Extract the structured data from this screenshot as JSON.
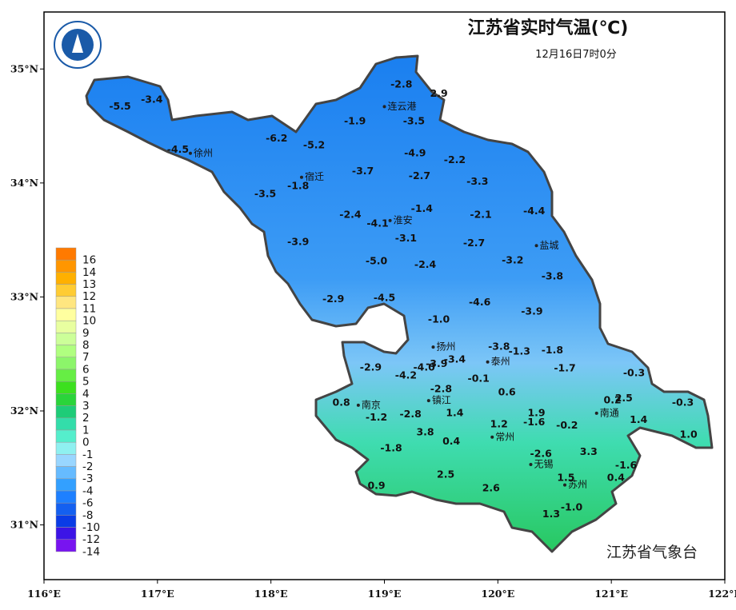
{
  "title": "江苏省实时气温(℃)",
  "subtitle": "12月16日7时0分",
  "agency": "江苏省气象台",
  "lon_range": [
    116,
    122
  ],
  "lat_range": [
    30.52,
    35.5
  ],
  "lon_ticks": [
    {
      "value": 116,
      "label": "116°E"
    },
    {
      "value": 117,
      "label": "117°E"
    },
    {
      "value": 118,
      "label": "118°E"
    },
    {
      "value": 119,
      "label": "119°E"
    },
    {
      "value": 120,
      "label": "120°E"
    },
    {
      "value": 121,
      "label": "121°E"
    },
    {
      "value": 122,
      "label": "122°E"
    }
  ],
  "lat_ticks": [
    {
      "value": 35,
      "label": "35°N"
    },
    {
      "value": 34,
      "label": "34°N"
    },
    {
      "value": 33,
      "label": "33°N"
    },
    {
      "value": 32,
      "label": "32°N"
    },
    {
      "value": 31,
      "label": "31°N"
    }
  ],
  "legend": [
    {
      "value": 16,
      "color": "#ff7a00"
    },
    {
      "value": 14,
      "color": "#ff9600"
    },
    {
      "value": 13,
      "color": "#ffb000"
    },
    {
      "value": 12,
      "color": "#ffcc33"
    },
    {
      "value": 11,
      "color": "#ffe680"
    },
    {
      "value": 10,
      "color": "#ffff9f"
    },
    {
      "value": 9,
      "color": "#e8ffa0"
    },
    {
      "value": 8,
      "color": "#ccff99"
    },
    {
      "value": 7,
      "color": "#b0ff80"
    },
    {
      "value": 6,
      "color": "#8cf56a"
    },
    {
      "value": 5,
      "color": "#66ee44"
    },
    {
      "value": 4,
      "color": "#3ce01e"
    },
    {
      "value": 3,
      "color": "#2ad43a"
    },
    {
      "value": 2,
      "color": "#1ecc78"
    },
    {
      "value": 1,
      "color": "#33ddaa"
    },
    {
      "value": 0,
      "color": "#55eecc"
    },
    {
      "value": -1,
      "color": "#8ff0f0"
    },
    {
      "value": -2,
      "color": "#99d6ff"
    },
    {
      "value": -3,
      "color": "#66bbff"
    },
    {
      "value": -4,
      "color": "#33a0ff"
    },
    {
      "value": -6,
      "color": "#1e80ff"
    },
    {
      "value": -8,
      "color": "#1460f0"
    },
    {
      "value": -10,
      "color": "#0a3ce6"
    },
    {
      "value": -12,
      "color": "#3c14e6"
    },
    {
      "value": -14,
      "color": "#7814f0"
    }
  ],
  "cities": [
    {
      "name": "连云港",
      "lon": 119.0,
      "lat": 34.67
    },
    {
      "name": "徐州",
      "lon": 117.29,
      "lat": 34.26
    },
    {
      "name": "宿迁",
      "lon": 118.27,
      "lat": 34.05
    },
    {
      "name": "淮安",
      "lon": 119.05,
      "lat": 33.67
    },
    {
      "name": "盐城",
      "lon": 120.34,
      "lat": 33.45
    },
    {
      "name": "扬州",
      "lon": 119.43,
      "lat": 32.56
    },
    {
      "name": "泰州",
      "lon": 119.91,
      "lat": 32.43
    },
    {
      "name": "南京",
      "lon": 118.77,
      "lat": 32.05
    },
    {
      "name": "镇江",
      "lon": 119.39,
      "lat": 32.09
    },
    {
      "name": "南通",
      "lon": 120.87,
      "lat": 31.98
    },
    {
      "name": "常州",
      "lon": 119.95,
      "lat": 31.77
    },
    {
      "name": "无锡",
      "lon": 120.29,
      "lat": 31.53
    },
    {
      "name": "苏州",
      "lon": 120.59,
      "lat": 31.35
    }
  ],
  "stations": [
    {
      "value": -2.8,
      "lon": 119.15,
      "lat": 34.86
    },
    {
      "value": 2.9,
      "lon": 119.48,
      "lat": 34.78
    },
    {
      "value": -5.5,
      "lon": 116.67,
      "lat": 34.67
    },
    {
      "value": -3.4,
      "lon": 116.95,
      "lat": 34.73
    },
    {
      "value": -3.5,
      "lon": 119.26,
      "lat": 34.54
    },
    {
      "value": -1.9,
      "lon": 118.74,
      "lat": 34.54
    },
    {
      "value": -6.2,
      "lon": 118.05,
      "lat": 34.39
    },
    {
      "value": -5.2,
      "lon": 118.38,
      "lat": 34.33
    },
    {
      "value": -4.5,
      "lon": 117.18,
      "lat": 34.29
    },
    {
      "value": -4.9,
      "lon": 119.27,
      "lat": 34.26
    },
    {
      "value": -2.2,
      "lon": 119.62,
      "lat": 34.2
    },
    {
      "value": -3.7,
      "lon": 118.81,
      "lat": 34.1
    },
    {
      "value": -2.7,
      "lon": 119.31,
      "lat": 34.06
    },
    {
      "value": -3.3,
      "lon": 119.82,
      "lat": 34.01
    },
    {
      "value": -1.8,
      "lon": 118.24,
      "lat": 33.97
    },
    {
      "value": -3.5,
      "lon": 117.95,
      "lat": 33.9
    },
    {
      "value": -1.4,
      "lon": 119.33,
      "lat": 33.77
    },
    {
      "value": -2.4,
      "lon": 118.7,
      "lat": 33.72
    },
    {
      "value": -2.1,
      "lon": 119.85,
      "lat": 33.72
    },
    {
      "value": -4.4,
      "lon": 120.32,
      "lat": 33.75
    },
    {
      "value": -4.1,
      "lon": 118.94,
      "lat": 33.64
    },
    {
      "value": -3.1,
      "lon": 119.19,
      "lat": 33.51
    },
    {
      "value": -2.7,
      "lon": 119.79,
      "lat": 33.47
    },
    {
      "value": -3.9,
      "lon": 118.24,
      "lat": 33.48
    },
    {
      "value": -5,
      "label": "-5.0",
      "lon": 118.93,
      "lat": 33.31
    },
    {
      "value": -2.4,
      "lon": 119.36,
      "lat": 33.28
    },
    {
      "value": -3.2,
      "lon": 120.13,
      "lat": 33.32
    },
    {
      "value": -3.8,
      "lon": 120.48,
      "lat": 33.18
    },
    {
      "value": -4.6,
      "lon": 119.84,
      "lat": 32.95
    },
    {
      "value": -2.9,
      "lon": 118.55,
      "lat": 32.98
    },
    {
      "value": -4.5,
      "lon": 119.0,
      "lat": 32.99
    },
    {
      "value": -3.9,
      "lon": 120.3,
      "lat": 32.87
    },
    {
      "value": -1,
      "label": "-1.0",
      "lon": 119.48,
      "lat": 32.8
    },
    {
      "value": -3.8,
      "lon": 120.01,
      "lat": 32.56
    },
    {
      "value": -1.3,
      "lon": 120.19,
      "lat": 32.52
    },
    {
      "value": -1.8,
      "lon": 120.48,
      "lat": 32.53
    },
    {
      "value": -3.9,
      "lon": 119.46,
      "lat": 32.41
    },
    {
      "value": -3.4,
      "lon": 119.62,
      "lat": 32.45
    },
    {
      "value": -2.9,
      "lon": 118.88,
      "lat": 32.38
    },
    {
      "value": -4,
      "label": "-4.0",
      "lon": 119.35,
      "lat": 32.38
    },
    {
      "value": -1.7,
      "lon": 120.59,
      "lat": 32.37
    },
    {
      "value": -0.3,
      "lon": 121.2,
      "lat": 32.33
    },
    {
      "value": -4.2,
      "lon": 119.19,
      "lat": 32.31
    },
    {
      "value": -0.1,
      "lon": 119.83,
      "lat": 32.28
    },
    {
      "value": -2.8,
      "lon": 119.5,
      "lat": 32.19
    },
    {
      "value": 0.6,
      "lon": 120.08,
      "lat": 32.16
    },
    {
      "value": 0.2,
      "lon": 121.01,
      "lat": 32.09
    },
    {
      "value": 2.5,
      "lon": 121.11,
      "lat": 32.11
    },
    {
      "value": -0.3,
      "lon": 121.63,
      "lat": 32.07
    },
    {
      "value": 0.8,
      "lon": 118.62,
      "lat": 32.07
    },
    {
      "value": 1.9,
      "lon": 120.34,
      "lat": 31.98
    },
    {
      "value": 1.4,
      "lon": 119.62,
      "lat": 31.98
    },
    {
      "value": -1.2,
      "lon": 118.93,
      "lat": 31.94
    },
    {
      "value": -2.8,
      "lon": 119.23,
      "lat": 31.97
    },
    {
      "value": -1.6,
      "lon": 120.32,
      "lat": 31.9
    },
    {
      "value": -0.2,
      "lon": 120.61,
      "lat": 31.87
    },
    {
      "value": 1.4,
      "lon": 121.24,
      "lat": 31.92
    },
    {
      "value": 1.2,
      "lon": 120.01,
      "lat": 31.88
    },
    {
      "value": 3.8,
      "lon": 119.36,
      "lat": 31.81
    },
    {
      "value": 1,
      "label": "1.0",
      "lon": 121.68,
      "lat": 31.79
    },
    {
      "value": 0.4,
      "lon": 119.59,
      "lat": 31.73
    },
    {
      "value": -1.8,
      "lon": 119.06,
      "lat": 31.67
    },
    {
      "value": -2.6,
      "lon": 120.38,
      "lat": 31.62
    },
    {
      "value": 3.3,
      "lon": 120.8,
      "lat": 31.64
    },
    {
      "value": -1.6,
      "lon": 121.13,
      "lat": 31.52
    },
    {
      "value": 2.5,
      "lon": 119.54,
      "lat": 31.44
    },
    {
      "value": 1.5,
      "lon": 120.6,
      "lat": 31.41
    },
    {
      "value": 0.4,
      "lon": 121.04,
      "lat": 31.41
    },
    {
      "value": 0.9,
      "lon": 118.93,
      "lat": 31.34
    },
    {
      "value": 2.6,
      "lon": 119.94,
      "lat": 31.32
    },
    {
      "value": -1,
      "label": "-1.0",
      "lon": 120.65,
      "lat": 31.15
    },
    {
      "value": 1.3,
      "lon": 120.47,
      "lat": 31.09
    }
  ]
}
